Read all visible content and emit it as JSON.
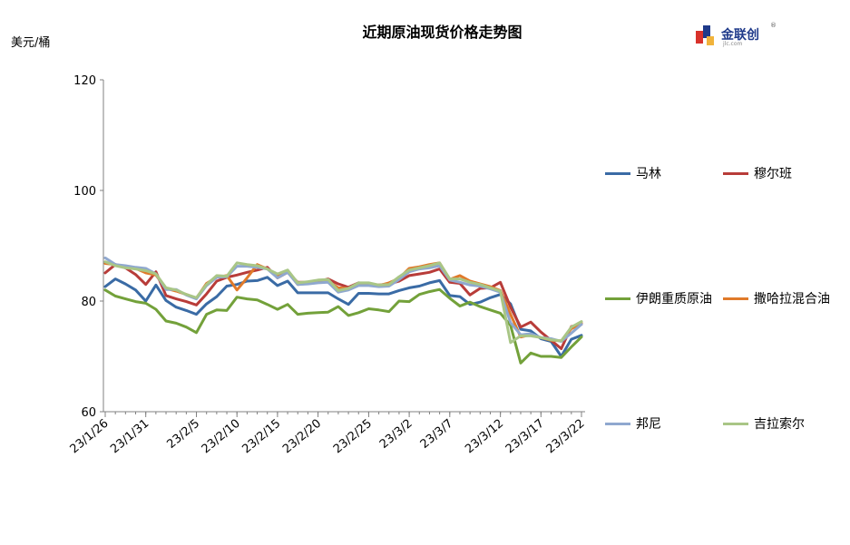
{
  "chart_data": {
    "type": "line",
    "title": "近期原油现货价格走势图",
    "ylabel": "美元/桶",
    "ylim": [
      60,
      120
    ],
    "yticks": [
      "60",
      "80",
      "100",
      "120"
    ],
    "xtick_labels": [
      "23/1/26",
      "23/1/31",
      "23/2/5",
      "23/2/10",
      "23/2/15",
      "23/2/20",
      "23/2/25",
      "23/3/2",
      "23/3/7",
      "23/3/12",
      "23/3/17",
      "23/3/22"
    ],
    "legend_position": "right",
    "series": [
      {
        "name": "马林",
        "color": "#3a6ba5",
        "values": [
          82.6,
          84.0,
          83.1,
          82.0,
          80.0,
          82.9,
          80.1,
          78.9,
          78.3,
          77.6,
          79.5,
          80.8,
          82.7,
          83.0,
          83.6,
          83.7,
          84.3,
          82.8,
          83.6,
          81.5,
          81.5,
          81.5,
          81.5,
          80.4,
          79.4,
          81.4,
          81.4,
          81.3,
          81.3,
          81.9,
          82.4,
          82.7,
          83.3,
          83.7,
          81.0,
          80.8,
          79.4,
          79.8,
          80.6,
          81.2,
          79.5,
          74.9,
          74.6,
          73.2,
          72.7,
          70.0,
          73.1,
          73.8
        ]
      },
      {
        "name": "穆尔班",
        "color": "#b83c39",
        "values": [
          85.1,
          86.6,
          86.0,
          84.8,
          83.0,
          85.3,
          81.0,
          80.4,
          79.9,
          79.3,
          81.3,
          83.6,
          84.3,
          84.7,
          85.2,
          85.6,
          86.1,
          84.2,
          85.2,
          83.4,
          83.4,
          83.5,
          84.0,
          83.1,
          82.5,
          83.3,
          83.1,
          82.9,
          83.1,
          83.6,
          84.6,
          84.9,
          85.2,
          85.8,
          83.4,
          83.2,
          81.1,
          82.3,
          82.4,
          83.4,
          78.9,
          75.3,
          76.2,
          74.4,
          72.9,
          71.4,
          75.4,
          75.8
        ]
      },
      {
        "name": "伊朗重质原油",
        "color": "#73a13a",
        "values": [
          82.0,
          80.9,
          80.4,
          79.9,
          79.6,
          78.5,
          76.4,
          76.0,
          75.3,
          74.3,
          77.6,
          78.4,
          78.3,
          80.7,
          80.4,
          80.2,
          79.4,
          78.5,
          79.4,
          77.6,
          77.8,
          77.9,
          78.0,
          79.0,
          77.4,
          77.9,
          78.6,
          78.4,
          78.1,
          80.0,
          79.9,
          81.2,
          81.7,
          82.1,
          80.5,
          79.1,
          79.8,
          79.0,
          78.4,
          77.8,
          75.6,
          68.8,
          70.6,
          70.0,
          70.0,
          69.8,
          71.7,
          73.5
        ]
      },
      {
        "name": "撒哈拉混合油",
        "color": "#e07a2a",
        "values": [
          86.8,
          86.6,
          86.2,
          85.9,
          85.1,
          84.7,
          82.3,
          81.8,
          81.2,
          80.5,
          83.2,
          84.3,
          84.6,
          82.0,
          84.2,
          86.6,
          85.8,
          84.7,
          85.3,
          83.0,
          83.2,
          83.6,
          83.6,
          82.4,
          82.3,
          83.1,
          83.2,
          82.8,
          83.3,
          84.1,
          85.9,
          86.2,
          86.6,
          86.9,
          83.9,
          84.6,
          83.6,
          83.1,
          82.6,
          81.9,
          77.6,
          73.5,
          73.9,
          73.4,
          72.9,
          72.8,
          75.0,
          76.0
        ]
      },
      {
        "name": "邦尼",
        "color": "#8fa8cf",
        "values": [
          87.8,
          86.6,
          86.4,
          86.1,
          85.9,
          84.9,
          82.1,
          82.1,
          81.1,
          80.4,
          82.8,
          84.3,
          84.4,
          86.3,
          86.3,
          86.1,
          85.8,
          84.2,
          85.2,
          83.0,
          83.1,
          83.3,
          83.4,
          81.6,
          82.0,
          82.8,
          82.8,
          82.6,
          82.7,
          83.9,
          85.3,
          85.8,
          86.0,
          86.4,
          83.8,
          83.4,
          82.9,
          82.7,
          82.2,
          81.6,
          76.1,
          73.9,
          74.1,
          73.4,
          73.2,
          72.7,
          74.2,
          75.8
        ]
      },
      {
        "name": "吉拉索尔",
        "color": "#a9c686",
        "values": [
          87.1,
          86.4,
          86.0,
          85.8,
          85.5,
          84.9,
          82.4,
          82.0,
          81.2,
          80.6,
          83.0,
          84.6,
          84.5,
          86.9,
          86.6,
          86.4,
          85.8,
          84.9,
          85.6,
          83.3,
          83.5,
          83.8,
          83.9,
          81.9,
          82.3,
          83.3,
          83.3,
          82.9,
          83.0,
          84.4,
          85.6,
          86.0,
          86.4,
          86.9,
          84.0,
          84.0,
          83.4,
          83.0,
          82.4,
          81.8,
          72.5,
          73.7,
          73.7,
          73.4,
          73.0,
          72.8,
          75.3,
          76.3
        ]
      }
    ]
  },
  "logo": {
    "name": "金联创",
    "url_text": "jlc.com",
    "reg_mark": "®"
  }
}
